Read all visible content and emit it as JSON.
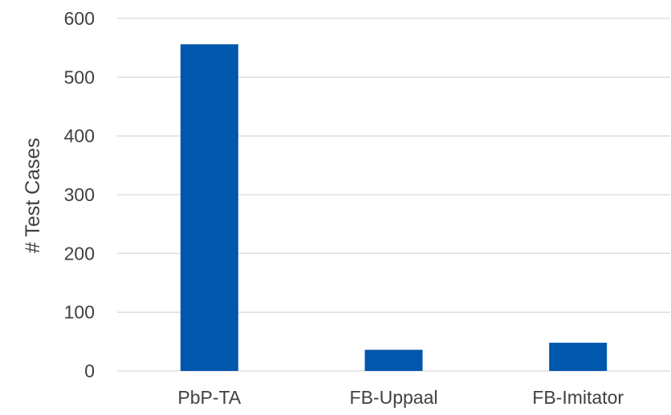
{
  "chart_data": {
    "type": "bar",
    "categories": [
      "PbP-TA",
      "FB-Uppaal",
      "FB-Imitator"
    ],
    "values": [
      556,
      36,
      48
    ],
    "title": "",
    "xlabel": "",
    "ylabel": "# Test Cases",
    "ylim": [
      0,
      600
    ],
    "yticks": [
      0,
      100,
      200,
      300,
      400,
      500,
      600
    ],
    "grid": true,
    "legend": "none",
    "bar_color": "#0057AD",
    "grid_color": "#D9D9D9",
    "text_color": "#404040"
  }
}
